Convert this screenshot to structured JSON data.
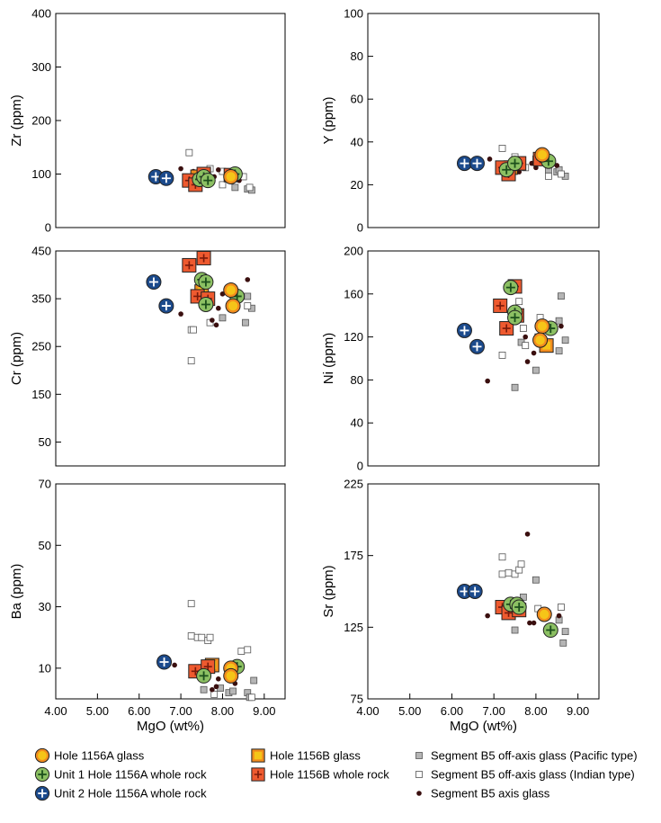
{
  "chart_data": [
    {
      "id": "zr",
      "type": "scatter",
      "ylabel": "Zr (ppm)",
      "xlabel": "",
      "xlim": [
        4.0,
        9.5
      ],
      "ylim": [
        0,
        400
      ],
      "yticks": [
        0,
        100,
        200,
        300,
        400
      ],
      "ytick_labels": [
        "0",
        "100",
        "200",
        "300",
        "400"
      ],
      "series": [
        {
          "key": "b5axis",
          "points": [
            [
              7.0,
              110
            ],
            [
              7.3,
              105
            ],
            [
              7.8,
              95
            ],
            [
              7.9,
              108
            ],
            [
              8.2,
              100
            ],
            [
              8.4,
              88
            ],
            [
              7.5,
              85
            ]
          ]
        },
        {
          "key": "b5pac",
          "points": [
            [
              8.3,
              75
            ],
            [
              8.6,
              72
            ],
            [
              8.7,
              70
            ],
            [
              7.6,
              100
            ]
          ]
        },
        {
          "key": "b5ind",
          "points": [
            [
              7.2,
              140
            ],
            [
              7.7,
              110
            ],
            [
              8.0,
              105
            ],
            [
              8.5,
              95
            ],
            [
              8.65,
              75
            ],
            [
              8.0,
              80
            ],
            [
              7.5,
              92
            ]
          ]
        },
        {
          "key": "b_whole",
          "points": [
            [
              7.2,
              88
            ],
            [
              7.35,
              80
            ],
            [
              7.55,
              100
            ],
            [
              8.2,
              98
            ]
          ]
        },
        {
          "key": "b_glass",
          "points": [
            [
              7.4,
              95
            ]
          ]
        },
        {
          "key": "u1_whole",
          "points": [
            [
              7.45,
              90
            ],
            [
              7.55,
              95
            ],
            [
              7.65,
              88
            ],
            [
              8.3,
              100
            ]
          ]
        },
        {
          "key": "a_glass",
          "points": [
            [
              8.2,
              95
            ]
          ]
        },
        {
          "key": "u2_whole",
          "points": [
            [
              6.4,
              95
            ],
            [
              6.65,
              92
            ]
          ]
        }
      ]
    },
    {
      "id": "y",
      "type": "scatter",
      "ylabel": "Y (ppm)",
      "xlabel": "",
      "xlim": [
        4.0,
        9.5
      ],
      "ylim": [
        0,
        100
      ],
      "yticks": [
        0,
        20,
        40,
        60,
        80,
        100
      ],
      "ytick_labels": [
        "0",
        "20",
        "40",
        "60",
        "80",
        "100"
      ],
      "series": [
        {
          "key": "b5axis",
          "points": [
            [
              6.9,
              32
            ],
            [
              7.9,
              30
            ],
            [
              8.0,
              28
            ],
            [
              7.6,
              26
            ],
            [
              8.5,
              29
            ]
          ]
        },
        {
          "key": "b5pac",
          "points": [
            [
              8.3,
              27
            ],
            [
              8.5,
              26
            ],
            [
              8.7,
              24
            ],
            [
              7.6,
              30
            ],
            [
              8.55,
              27
            ]
          ]
        },
        {
          "key": "b5ind",
          "points": [
            [
              7.2,
              37
            ],
            [
              7.5,
              33
            ],
            [
              8.0,
              32
            ],
            [
              8.3,
              24
            ],
            [
              8.6,
              25
            ],
            [
              7.75,
              28
            ]
          ]
        },
        {
          "key": "b_whole",
          "points": [
            [
              7.2,
              28
            ],
            [
              7.35,
              25
            ],
            [
              7.6,
              30
            ],
            [
              8.1,
              32
            ]
          ]
        },
        {
          "key": "b_glass",
          "points": [
            [
              7.4,
              28
            ]
          ]
        },
        {
          "key": "u1_whole",
          "points": [
            [
              7.3,
              27
            ],
            [
              7.5,
              30
            ],
            [
              8.3,
              31
            ]
          ]
        },
        {
          "key": "a_glass",
          "points": [
            [
              8.15,
              34
            ]
          ]
        },
        {
          "key": "u2_whole",
          "points": [
            [
              6.3,
              30
            ],
            [
              6.6,
              30
            ]
          ]
        }
      ]
    },
    {
      "id": "cr",
      "type": "scatter",
      "ylabel": "Cr (ppm)",
      "xlabel": "",
      "xlim": [
        4.0,
        9.5
      ],
      "ylim": [
        0,
        450
      ],
      "yticks": [
        50,
        150,
        250,
        350,
        450
      ],
      "ytick_labels": [
        "50",
        "150",
        "250",
        "350",
        "450"
      ],
      "series": [
        {
          "key": "b5axis",
          "points": [
            [
              7.0,
              318
            ],
            [
              7.75,
              305
            ],
            [
              7.9,
              330
            ],
            [
              8.0,
              360
            ],
            [
              8.6,
              390
            ],
            [
              7.85,
              295
            ]
          ]
        },
        {
          "key": "b5pac",
          "points": [
            [
              8.0,
              310
            ],
            [
              8.55,
              300
            ],
            [
              8.6,
              355
            ],
            [
              8.7,
              330
            ]
          ]
        },
        {
          "key": "b5ind",
          "points": [
            [
              7.25,
              285
            ],
            [
              7.3,
              285
            ],
            [
              7.25,
              220
            ],
            [
              7.7,
              300
            ],
            [
              8.6,
              335
            ]
          ]
        },
        {
          "key": "b_whole",
          "points": [
            [
              7.2,
              420
            ],
            [
              7.55,
              435
            ],
            [
              7.4,
              355
            ],
            [
              7.65,
              350
            ]
          ]
        },
        {
          "key": "b_glass",
          "points": [
            [
              7.5,
              365
            ]
          ]
        },
        {
          "key": "u1_whole",
          "points": [
            [
              7.5,
              390
            ],
            [
              7.6,
              385
            ],
            [
              7.6,
              338
            ],
            [
              8.35,
              355
            ]
          ]
        },
        {
          "key": "a_glass",
          "points": [
            [
              8.2,
              368
            ],
            [
              8.25,
              335
            ]
          ]
        },
        {
          "key": "u2_whole",
          "points": [
            [
              6.35,
              385
            ],
            [
              6.65,
              335
            ]
          ]
        }
      ]
    },
    {
      "id": "ni",
      "type": "scatter",
      "ylabel": "Ni (ppm)",
      "xlabel": "",
      "xlim": [
        4.0,
        9.5
      ],
      "ylim": [
        0,
        200
      ],
      "yticks": [
        0,
        40,
        80,
        120,
        160,
        200
      ],
      "ytick_labels": [
        "0",
        "40",
        "80",
        "120",
        "160",
        "200"
      ],
      "series": [
        {
          "key": "b5axis",
          "points": [
            [
              6.85,
              79
            ],
            [
              7.75,
              120
            ],
            [
              7.8,
              97
            ],
            [
              7.95,
              105
            ],
            [
              8.6,
              130
            ]
          ]
        },
        {
          "key": "b5pac",
          "points": [
            [
              7.5,
              73
            ],
            [
              7.65,
              115
            ],
            [
              8.0,
              89
            ],
            [
              8.6,
              158
            ],
            [
              8.55,
              135
            ],
            [
              8.7,
              117
            ],
            [
              8.55,
              107
            ]
          ]
        },
        {
          "key": "b5ind",
          "points": [
            [
              7.2,
              103
            ],
            [
              7.6,
              153
            ],
            [
              7.75,
              112
            ],
            [
              7.7,
              128
            ],
            [
              8.05,
              120
            ],
            [
              8.1,
              138
            ]
          ]
        },
        {
          "key": "b_whole",
          "points": [
            [
              7.15,
              149
            ],
            [
              7.3,
              128
            ],
            [
              7.5,
              167
            ],
            [
              7.55,
              140
            ]
          ]
        },
        {
          "key": "b_glass",
          "points": [
            [
              8.25,
              112
            ]
          ]
        },
        {
          "key": "u1_whole",
          "points": [
            [
              7.4,
              166
            ],
            [
              7.5,
              143
            ],
            [
              7.5,
              138
            ],
            [
              8.35,
              128
            ]
          ]
        },
        {
          "key": "a_glass",
          "points": [
            [
              8.15,
              130
            ],
            [
              8.1,
              117
            ]
          ]
        },
        {
          "key": "u2_whole",
          "points": [
            [
              6.3,
              126
            ],
            [
              6.6,
              111
            ]
          ]
        }
      ]
    },
    {
      "id": "ba",
      "type": "scatter",
      "ylabel": "Ba (ppm)",
      "xlabel": "MgO (wt%)",
      "xlim": [
        4.0,
        9.5
      ],
      "ylim": [
        0,
        70
      ],
      "yticks": [
        10,
        30,
        50,
        70
      ],
      "ytick_labels": [
        "10",
        "30",
        "50",
        "70"
      ],
      "xticks": [
        4.0,
        5.0,
        6.0,
        7.0,
        8.0,
        9.0
      ],
      "xtick_labels": [
        "4.00",
        "5.00",
        "6.00",
        "7.00",
        "8.00",
        "9.00"
      ],
      "series": [
        {
          "key": "b5axis",
          "points": [
            [
              6.85,
              11
            ],
            [
              7.75,
              3
            ],
            [
              7.85,
              4
            ],
            [
              7.9,
              6.5
            ],
            [
              8.3,
              5
            ],
            [
              7.6,
              9
            ]
          ]
        },
        {
          "key": "b5pac",
          "points": [
            [
              7.55,
              3
            ],
            [
              7.95,
              3.5
            ],
            [
              8.15,
              2
            ],
            [
              8.25,
              2.5
            ],
            [
              8.6,
              2
            ],
            [
              8.65,
              0.5
            ],
            [
              8.75,
              6
            ]
          ]
        },
        {
          "key": "b5ind",
          "points": [
            [
              7.25,
              31
            ],
            [
              7.25,
              20.5
            ],
            [
              7.4,
              20
            ],
            [
              7.5,
              20
            ],
            [
              7.65,
              19
            ],
            [
              7.7,
              20
            ],
            [
              8.45,
              15.5
            ],
            [
              8.6,
              16
            ],
            [
              8.7,
              0.5
            ],
            [
              7.8,
              1.5
            ]
          ]
        },
        {
          "key": "b_whole",
          "points": [
            [
              7.35,
              9
            ],
            [
              7.65,
              10.5
            ]
          ]
        },
        {
          "key": "b_glass",
          "points": [
            [
              7.75,
              11
            ]
          ]
        },
        {
          "key": "u1_whole",
          "points": [
            [
              7.55,
              7.5
            ],
            [
              8.35,
              10.5
            ]
          ]
        },
        {
          "key": "a_glass",
          "points": [
            [
              8.2,
              10
            ],
            [
              8.2,
              7.5
            ]
          ]
        },
        {
          "key": "u2_whole",
          "points": [
            [
              6.6,
              12
            ]
          ]
        }
      ]
    },
    {
      "id": "sr",
      "type": "scatter",
      "ylabel": "Sr (ppm)",
      "xlabel": "MgO (wt%)",
      "xlim": [
        4.0,
        9.5
      ],
      "ylim": [
        75,
        225
      ],
      "yticks": [
        75,
        125,
        175,
        225
      ],
      "ytick_labels": [
        "75",
        "125",
        "175",
        "225"
      ],
      "xticks": [
        4.0,
        5.0,
        6.0,
        7.0,
        8.0,
        9.0
      ],
      "xtick_labels": [
        "4.00",
        "5.00",
        "6.00",
        "7.00",
        "8.00",
        "9.00"
      ],
      "series": [
        {
          "key": "b5axis",
          "points": [
            [
              6.85,
              133
            ],
            [
              7.8,
              190
            ],
            [
              7.85,
              128
            ],
            [
              7.95,
              128
            ],
            [
              8.55,
              133
            ]
          ]
        },
        {
          "key": "b5pac",
          "points": [
            [
              7.5,
              123
            ],
            [
              7.7,
              146
            ],
            [
              8.0,
              158
            ],
            [
              8.55,
              130
            ],
            [
              8.65,
              114
            ],
            [
              8.7,
              122
            ]
          ]
        },
        {
          "key": "b5ind",
          "points": [
            [
              7.2,
              174
            ],
            [
              7.2,
              162
            ],
            [
              7.35,
              163
            ],
            [
              7.5,
              162
            ],
            [
              7.6,
              165
            ],
            [
              7.65,
              169
            ],
            [
              8.05,
              138
            ],
            [
              8.2,
              136
            ],
            [
              8.6,
              139
            ]
          ]
        },
        {
          "key": "b_whole",
          "points": [
            [
              7.2,
              139
            ],
            [
              7.35,
              135
            ],
            [
              7.6,
              137
            ]
          ]
        },
        {
          "key": "b_glass",
          "points": [
            [
              7.45,
              138
            ]
          ]
        },
        {
          "key": "u1_whole",
          "points": [
            [
              7.4,
              141
            ],
            [
              7.55,
              141
            ],
            [
              7.6,
              139
            ],
            [
              8.35,
              123
            ]
          ]
        },
        {
          "key": "a_glass",
          "points": [
            [
              8.2,
              134
            ]
          ]
        },
        {
          "key": "u2_whole",
          "points": [
            [
              6.3,
              150
            ],
            [
              6.55,
              150
            ]
          ]
        }
      ]
    }
  ],
  "legend": [
    {
      "key": "a_glass",
      "label": "Hole 1156A glass",
      "marker": "circle",
      "fill": "#f5c518",
      "ring": "#f28c1e"
    },
    {
      "key": "u1_whole",
      "label": "Unit 1 Hole 1156A whole rock",
      "marker": "circle-plus",
      "fill": "#8cc063",
      "plus": "#1c4f1c"
    },
    {
      "key": "u2_whole",
      "label": "Unit 2 Hole 1156A whole rock",
      "marker": "circle-plus",
      "fill": "#1b4a8c",
      "plus": "#ffffff"
    },
    {
      "key": "b_glass",
      "label": "Hole 1156B glass",
      "marker": "square",
      "fill": "#f5c518",
      "ring": "#f28c1e"
    },
    {
      "key": "b_whole",
      "label": "Hole 1156B whole rock",
      "marker": "square-plus",
      "fill": "#ee5a2f",
      "plus": "#7a1a0a"
    },
    {
      "key": "b5pac",
      "label": "Segment B5 off-axis glass (Pacific type)",
      "marker": "small-square",
      "fill": "#b5b5b5"
    },
    {
      "key": "b5ind",
      "label": "Segment B5 off-axis glass (Indian type)",
      "marker": "small-square",
      "fill": "#ffffff"
    },
    {
      "key": "b5axis",
      "label": "Segment B5 axis glass",
      "marker": "dot",
      "fill": "#3a0f0f"
    }
  ]
}
